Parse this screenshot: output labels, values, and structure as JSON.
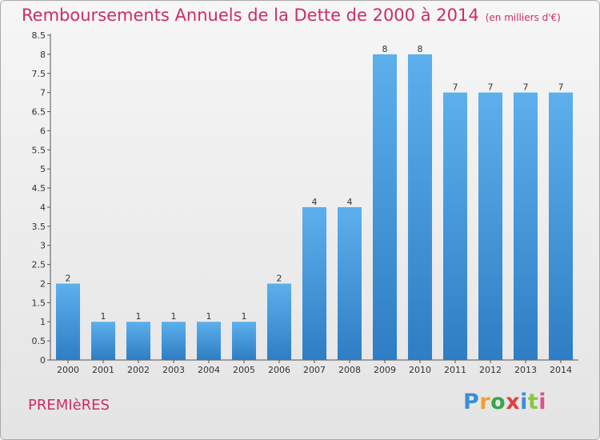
{
  "chart_data": {
    "type": "bar",
    "title": "Remboursements Annuels de la Dette de 2000 à 2014",
    "unit": "(en milliers d'€)",
    "categories": [
      "2000",
      "2001",
      "2002",
      "2003",
      "2004",
      "2005",
      "2006",
      "2007",
      "2008",
      "2009",
      "2010",
      "2011",
      "2012",
      "2013",
      "2014"
    ],
    "values": [
      2,
      1,
      1,
      1,
      1,
      1,
      2,
      4,
      4,
      8,
      8,
      7,
      7,
      7,
      7
    ],
    "value_labels": [
      "2",
      "1",
      "1",
      "1",
      "1",
      "1",
      "2",
      "4",
      "4",
      "8",
      "8",
      "7",
      "7",
      "7",
      "7"
    ],
    "ylim": [
      0,
      8.5
    ],
    "yticks": [
      "0",
      "0.5",
      "1",
      "1.5",
      "2",
      "2.5",
      "3",
      "3.5",
      "4",
      "4.5",
      "5",
      "5.5",
      "6",
      "6.5",
      "7",
      "7.5",
      "8",
      "8.5"
    ],
    "grid": false,
    "bar_color": "#4a9de0"
  },
  "commune": "PREMIèRES",
  "logo": {
    "letters": [
      "P",
      "r",
      "o",
      "x",
      "i",
      "t",
      "i"
    ],
    "colors": [
      "#3a8fd6",
      "#f0a030",
      "#3aa64a",
      "#e04040",
      "#3a8fd6",
      "#8cc63f",
      "#e0508a"
    ]
  }
}
